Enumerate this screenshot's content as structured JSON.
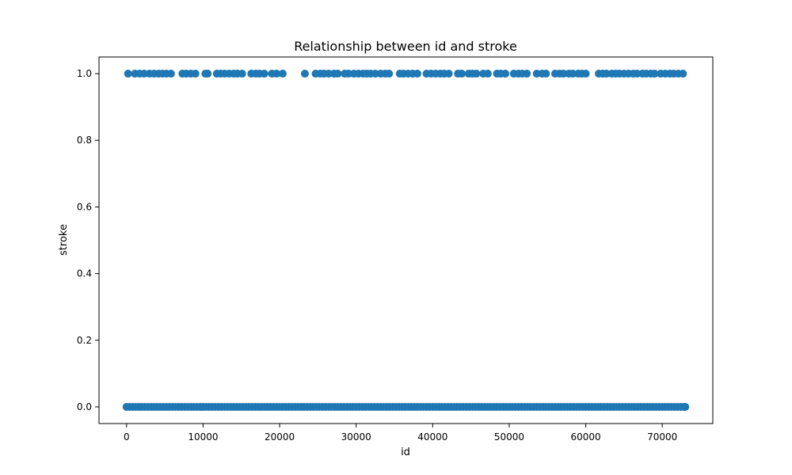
{
  "chart_data": {
    "type": "scatter",
    "title": "Relationship between id and stroke",
    "xlabel": "id",
    "ylabel": "stroke",
    "xlim": [
      -3600,
      76600
    ],
    "ylim": [
      -0.05,
      1.05
    ],
    "x_ticks": [
      0,
      10000,
      20000,
      30000,
      40000,
      50000,
      60000,
      70000
    ],
    "x_tick_labels": [
      "0",
      "10000",
      "20000",
      "30000",
      "40000",
      "50000",
      "60000",
      "70000"
    ],
    "y_ticks": [
      0.0,
      0.2,
      0.4,
      0.6,
      0.8,
      1.0
    ],
    "y_tick_labels": [
      "0.0",
      "0.2",
      "0.4",
      "0.6",
      "0.8",
      "1.0"
    ],
    "grid": false,
    "legend": "none",
    "marker_color": "#1f77b4",
    "series": [
      {
        "values_at_y": 0,
        "x": [
          0,
          400,
          800,
          1200,
          1600,
          2000,
          2400,
          2800,
          3200,
          3600,
          4000,
          4400,
          4800,
          5200,
          5600,
          6000,
          6400,
          6800,
          7200,
          7600,
          8000,
          8400,
          8800,
          9200,
          9600,
          10000,
          10400,
          10800,
          11200,
          11600,
          12000,
          12400,
          12800,
          13200,
          13600,
          14000,
          14400,
          14800,
          15200,
          15600,
          16000,
          16400,
          16800,
          17200,
          17600,
          18000,
          18400,
          18800,
          19200,
          19600,
          20000,
          20400,
          20800,
          21200,
          21600,
          22000,
          22400,
          22800,
          23200,
          23600,
          24000,
          24400,
          24800,
          25200,
          25600,
          26000,
          26400,
          26800,
          27200,
          27600,
          28000,
          28400,
          28800,
          29200,
          29600,
          30000,
          30400,
          30800,
          31200,
          31600,
          32000,
          32400,
          32800,
          33200,
          33600,
          34000,
          34400,
          34800,
          35200,
          35600,
          36000,
          36400,
          36800,
          37200,
          37600,
          38000,
          38400,
          38800,
          39200,
          39600,
          40000,
          40400,
          40800,
          41200,
          41600,
          42000,
          42400,
          42800,
          43200,
          43600,
          44000,
          44400,
          44800,
          45200,
          45600,
          46000,
          46400,
          46800,
          47200,
          47600,
          48000,
          48400,
          48800,
          49200,
          49600,
          50000,
          50400,
          50800,
          51200,
          51600,
          52000,
          52400,
          52800,
          53200,
          53600,
          54000,
          54400,
          54800,
          55200,
          55600,
          56000,
          56400,
          56800,
          57200,
          57600,
          58000,
          58400,
          58800,
          59200,
          59600,
          60000,
          60400,
          60800,
          61200,
          61600,
          62000,
          62400,
          62800,
          63200,
          63600,
          64000,
          64400,
          64800,
          65200,
          65600,
          66000,
          66400,
          66800,
          67200,
          67600,
          68000,
          68400,
          68800,
          69200,
          69600,
          70000,
          70400,
          70800,
          71200,
          71600,
          72000,
          72400,
          72800,
          73000
        ]
      },
      {
        "values_at_y": 1,
        "x": [
          200,
          1100,
          1700,
          2300,
          3000,
          3600,
          4200,
          4700,
          5200,
          5800,
          7300,
          7800,
          8400,
          9000,
          10300,
          10600,
          11800,
          12300,
          12800,
          13400,
          14000,
          14500,
          15100,
          16300,
          16900,
          17400,
          18000,
          19000,
          19600,
          20400,
          23300,
          24700,
          25300,
          25800,
          26400,
          27100,
          27600,
          28500,
          29000,
          29700,
          30300,
          30900,
          31400,
          31900,
          32500,
          33200,
          33800,
          34300,
          35700,
          36200,
          36800,
          37400,
          38000,
          39200,
          39800,
          40400,
          41000,
          41500,
          42100,
          43300,
          43800,
          44700,
          45200,
          45700,
          46600,
          47200,
          48400,
          48900,
          49500,
          50600,
          51200,
          51700,
          52300,
          53600,
          54300,
          54800,
          56000,
          56600,
          57100,
          57800,
          58300,
          59000,
          59500,
          60000,
          61700,
          62200,
          62700,
          63400,
          63900,
          64400,
          65000,
          65600,
          66200,
          66700,
          67400,
          67900,
          68500,
          69000,
          69800,
          70400,
          71000,
          71500,
          72100,
          72700
        ]
      }
    ]
  }
}
